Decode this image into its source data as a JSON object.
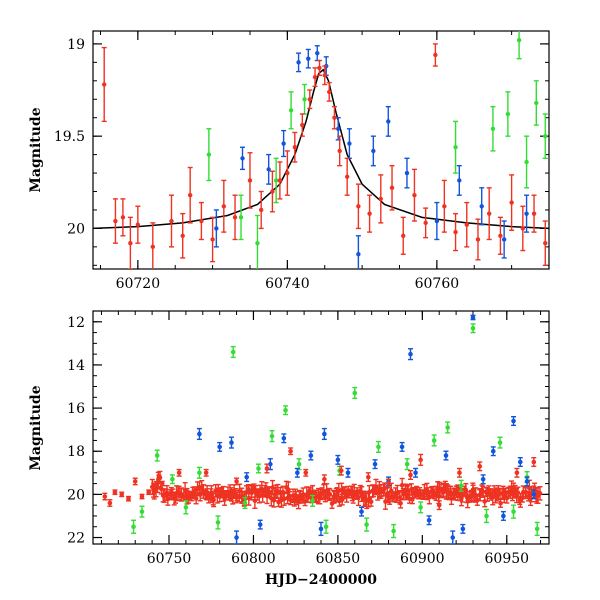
{
  "chart_data": [
    {
      "type": "scatter",
      "title": "",
      "xlabel": "",
      "ylabel": "Magnitude",
      "xlim": [
        60714,
        60775
      ],
      "ylim": [
        20.22,
        18.93
      ],
      "y_inverted": true,
      "xticks": [
        "60720",
        "60740",
        "60760"
      ],
      "yticks": [
        "19",
        "19.5",
        "20"
      ],
      "colors": {
        "red": "#ee3322",
        "blue": "#1155dd",
        "green": "#33dd33",
        "model": "#000000"
      },
      "model_curve": {
        "type": "line",
        "x": [
          60714,
          60720,
          60726,
          60732,
          60736,
          60739,
          60741,
          60742.5,
          60743.5,
          60744.2,
          60744.8,
          60745.5,
          60746.5,
          60748,
          60750,
          60753,
          60758,
          60764,
          60770,
          60775
        ],
        "y": [
          20.0,
          19.99,
          19.97,
          19.93,
          19.87,
          19.76,
          19.6,
          19.42,
          19.26,
          19.16,
          19.14,
          19.2,
          19.37,
          19.6,
          19.76,
          19.87,
          19.94,
          19.97,
          19.99,
          20.0
        ]
      },
      "series": [
        {
          "name": "red",
          "x": [
            60715.5,
            60717,
            60718,
            60719,
            60720,
            60722,
            60724.5,
            60726,
            60727,
            60728.5,
            60730,
            60731.5,
            60733,
            60735,
            60736.5,
            60738,
            60739,
            60740,
            60741,
            60742,
            60743,
            60743.7,
            60744.3,
            60745,
            60745.6,
            60746.3,
            60747,
            60748,
            60749.5,
            60751,
            60752.5,
            60754,
            60755.5,
            60757,
            60758.5,
            60759.8,
            60761,
            60762.5,
            60764,
            60765.5,
            60767,
            60768.5,
            60770,
            60771.5,
            60773,
            60774.5
          ],
          "y": [
            19.22,
            19.96,
            19.94,
            20.08,
            19.98,
            20.1,
            19.96,
            20.04,
            19.82,
            19.96,
            20.06,
            19.88,
            19.94,
            19.74,
            19.9,
            19.8,
            19.74,
            19.7,
            19.56,
            19.44,
            19.3,
            19.18,
            19.13,
            19.17,
            19.26,
            19.4,
            19.58,
            19.72,
            19.88,
            19.92,
            19.84,
            19.78,
            20.04,
            19.82,
            19.97,
            19.06,
            19.88,
            20.02,
            19.98,
            20.06,
            19.92,
            20.04,
            19.86,
            20.0,
            19.92,
            20.08
          ],
          "err": [
            0.2,
            0.12,
            0.1,
            0.14,
            0.1,
            0.13,
            0.14,
            0.12,
            0.15,
            0.1,
            0.12,
            0.14,
            0.12,
            0.15,
            0.1,
            0.11,
            0.1,
            0.12,
            0.08,
            0.06,
            0.05,
            0.05,
            0.04,
            0.05,
            0.05,
            0.06,
            0.08,
            0.1,
            0.12,
            0.1,
            0.13,
            0.12,
            0.1,
            0.14,
            0.08,
            0.06,
            0.14,
            0.1,
            0.12,
            0.11,
            0.14,
            0.1,
            0.15,
            0.12,
            0.1,
            0.12
          ]
        },
        {
          "name": "blue",
          "x": [
            60730.5,
            60734,
            60737.5,
            60739.5,
            60741.5,
            60742.8,
            60744,
            60745.2,
            60746.8,
            60748.3,
            60749.5,
            60751.5,
            60753.5,
            60756,
            60760,
            60763,
            60766,
            60769,
            60772
          ],
          "y": [
            20.0,
            19.62,
            19.68,
            19.54,
            19.1,
            19.08,
            19.05,
            19.12,
            19.46,
            19.54,
            20.14,
            19.58,
            19.42,
            19.7,
            19.96,
            19.74,
            19.88,
            20.06,
            19.92
          ],
          "err": [
            0.1,
            0.06,
            0.08,
            0.07,
            0.05,
            0.05,
            0.04,
            0.05,
            0.06,
            0.08,
            0.1,
            0.08,
            0.08,
            0.08,
            0.1,
            0.08,
            0.1,
            0.1,
            0.1
          ]
        },
        {
          "name": "green",
          "x": [
            60729.5,
            60733.8,
            60736,
            60738.5,
            60740.5,
            60742.3,
            60762.5,
            60767.5,
            60769.5,
            60771,
            60772,
            60773.3,
            60774.5
          ],
          "y": [
            19.6,
            19.94,
            20.08,
            19.74,
            19.36,
            19.3,
            19.56,
            19.46,
            19.38,
            18.98,
            19.64,
            19.32,
            19.5
          ],
          "err": [
            0.14,
            0.12,
            0.15,
            0.12,
            0.1,
            0.08,
            0.14,
            0.12,
            0.12,
            0.1,
            0.14,
            0.12,
            0.12
          ]
        }
      ]
    },
    {
      "type": "scatter",
      "title": "",
      "xlabel": "HJD−2400000",
      "ylabel": "Magnitude",
      "xlim": [
        60705,
        60975
      ],
      "ylim": [
        22.3,
        11.5
      ],
      "y_inverted": true,
      "xticks": [
        "60750",
        "60800",
        "60850",
        "60900",
        "60950"
      ],
      "yticks": [
        "12",
        "14",
        "16",
        "18",
        "20",
        "22"
      ],
      "colors": {
        "red": "#ee3322",
        "blue": "#1155dd",
        "green": "#33dd33",
        "model": "#000000"
      },
      "baseline": {
        "x_start": 60740,
        "x_end": 60970,
        "step": 0.8,
        "magnitude": 20.0,
        "scatter": 0.22,
        "color": "red"
      },
      "series": [
        {
          "name": "red",
          "x": [
            60712,
            60715,
            60718,
            60722,
            60726,
            60730,
            60734,
            60738,
            60742,
            60744,
            60746,
            60756,
            60772,
            60790,
            60808,
            60822,
            60831,
            60842,
            60852,
            60868,
            60880,
            60893,
            60899,
            60910,
            60922,
            60934,
            60945,
            60956,
            60966
          ],
          "y": [
            20.1,
            20.4,
            19.9,
            20.0,
            20.2,
            19.4,
            20.1,
            19.9,
            19.6,
            19.2,
            19.5,
            19.0,
            19.0,
            19.4,
            18.8,
            18.0,
            19.0,
            19.3,
            18.9,
            19.2,
            19.5,
            19.1,
            18.4,
            20.5,
            19.0,
            18.7,
            19.8,
            19.0,
            18.5
          ],
          "err": [
            0.15,
            0.15,
            0.1,
            0.1,
            0.1,
            0.15,
            0.1,
            0.1,
            0.1,
            0.1,
            0.1,
            0.15,
            0.15,
            0.15,
            0.2,
            0.15,
            0.15,
            0.2,
            0.2,
            0.2,
            0.2,
            0.2,
            0.25,
            0.2,
            0.2,
            0.2,
            0.2,
            0.2,
            0.2
          ]
        },
        {
          "name": "blue",
          "x": [
            60768,
            60780,
            60787,
            60790,
            60796,
            60804,
            60810,
            60818,
            60826,
            60834,
            60840,
            60842,
            60850,
            60856,
            60864,
            60872,
            60880,
            60888,
            60893,
            60896,
            60904,
            60914,
            60918,
            60924,
            60930,
            60936,
            60942,
            60948,
            60954,
            60958,
            60962,
            60966
          ],
          "y": [
            17.2,
            17.8,
            17.6,
            22.0,
            19.2,
            21.4,
            18.6,
            17.4,
            19.0,
            18.2,
            21.6,
            17.2,
            18.4,
            19.0,
            20.8,
            18.6,
            19.4,
            17.8,
            13.5,
            19.0,
            21.2,
            18.2,
            22.0,
            21.6,
            11.8,
            19.3,
            18.0,
            21.0,
            16.6,
            18.5,
            19.4,
            20.0
          ],
          "err": [
            0.25,
            0.2,
            0.25,
            0.3,
            0.2,
            0.2,
            0.25,
            0.2,
            0.2,
            0.2,
            0.3,
            0.25,
            0.2,
            0.2,
            0.2,
            0.2,
            0.2,
            0.2,
            0.25,
            0.2,
            0.2,
            0.2,
            0.3,
            0.2,
            0.1,
            0.2,
            0.2,
            0.2,
            0.2,
            0.2,
            0.2,
            0.2
          ]
        },
        {
          "name": "green",
          "x": [
            60729,
            60734,
            60743,
            60752,
            60760,
            60768,
            60779,
            60788,
            60795,
            60803,
            60811,
            60819,
            60827,
            60835,
            60843,
            60851,
            60860,
            60867,
            60874,
            60883,
            60891,
            60899,
            60907,
            60915,
            60923,
            60930,
            60938,
            60946,
            60954,
            60962,
            60968
          ],
          "y": [
            21.5,
            20.8,
            18.2,
            19.3,
            20.6,
            19.0,
            21.3,
            13.4,
            20.4,
            18.8,
            17.3,
            16.1,
            18.6,
            20.3,
            21.5,
            18.9,
            15.3,
            21.4,
            17.8,
            21.7,
            18.6,
            20.6,
            17.5,
            16.9,
            19.6,
            12.3,
            21.0,
            17.6,
            20.8,
            19.2,
            21.6
          ],
          "err": [
            0.3,
            0.25,
            0.25,
            0.2,
            0.3,
            0.25,
            0.3,
            0.25,
            0.25,
            0.2,
            0.25,
            0.2,
            0.25,
            0.25,
            0.3,
            0.2,
            0.25,
            0.3,
            0.25,
            0.3,
            0.25,
            0.25,
            0.25,
            0.25,
            0.25,
            0.2,
            0.3,
            0.25,
            0.3,
            0.25,
            0.3
          ]
        }
      ]
    }
  ]
}
